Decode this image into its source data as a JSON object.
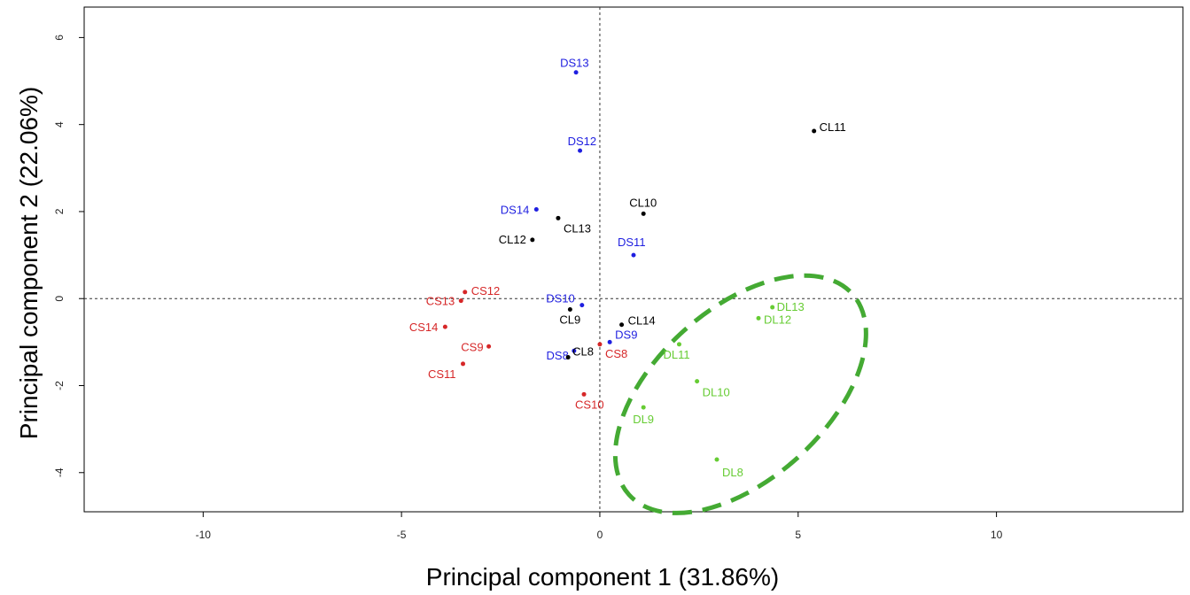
{
  "chart_data": {
    "type": "scatter",
    "title": "",
    "xlabel": "Principal component 1 (31.86%)",
    "ylabel": "Principal component 2 (22.06%)",
    "xlim": [
      -13.0,
      14.7
    ],
    "ylim": [
      -4.9,
      6.7
    ],
    "x_ticks": [
      -10,
      -5,
      0,
      5,
      10
    ],
    "y_ticks": [
      -4,
      -2,
      0,
      2,
      4,
      6
    ],
    "reference_lines": {
      "x": 0,
      "y": 0,
      "style": "dashed"
    },
    "colors": {
      "C_S": "#d62728",
      "C_L": "#000000",
      "D_S": "#1f1fe0",
      "D_L": "#66cc33",
      "ellipse": "#44aa33"
    },
    "points": [
      {
        "label": "DS13",
        "x": -0.6,
        "y": 5.2,
        "group": "D_S"
      },
      {
        "label": "DS12",
        "x": -0.5,
        "y": 3.4,
        "group": "D_S"
      },
      {
        "label": "DS14",
        "x": -1.6,
        "y": 2.05,
        "group": "D_S"
      },
      {
        "label": "DS11",
        "x": 0.85,
        "y": 1.0,
        "group": "D_S"
      },
      {
        "label": "DS10",
        "x": -0.45,
        "y": -0.15,
        "group": "D_S"
      },
      {
        "label": "DS9",
        "x": 0.25,
        "y": -1.0,
        "group": "D_S"
      },
      {
        "label": "DS8",
        "x": -0.65,
        "y": -1.2,
        "group": "D_S"
      },
      {
        "label": "CL11",
        "x": 5.4,
        "y": 3.85,
        "group": "C_L"
      },
      {
        "label": "CL10",
        "x": 1.1,
        "y": 1.95,
        "group": "C_L"
      },
      {
        "label": "CL13",
        "x": -1.05,
        "y": 1.85,
        "group": "C_L"
      },
      {
        "label": "CL12",
        "x": -1.7,
        "y": 1.35,
        "group": "C_L"
      },
      {
        "label": "CL9",
        "x": -0.75,
        "y": -0.25,
        "group": "C_L"
      },
      {
        "label": "CL14",
        "x": 0.55,
        "y": -0.6,
        "group": "C_L"
      },
      {
        "label": "CL8",
        "x": -0.8,
        "y": -1.35,
        "group": "C_L"
      },
      {
        "label": "CS12",
        "x": -3.4,
        "y": 0.15,
        "group": "C_S"
      },
      {
        "label": "CS13",
        "x": -3.5,
        "y": -0.05,
        "group": "C_S"
      },
      {
        "label": "CS14",
        "x": -3.9,
        "y": -0.65,
        "group": "C_S"
      },
      {
        "label": "CS9",
        "x": -2.8,
        "y": -1.1,
        "group": "C_S"
      },
      {
        "label": "CS11",
        "x": -3.45,
        "y": -1.5,
        "group": "C_S"
      },
      {
        "label": "CS8",
        "x": 0.0,
        "y": -1.05,
        "group": "C_S"
      },
      {
        "label": "CS10",
        "x": -0.4,
        "y": -2.2,
        "group": "C_S"
      },
      {
        "label": "DL13",
        "x": 4.35,
        "y": -0.2,
        "group": "D_L"
      },
      {
        "label": "DL12",
        "x": 4.0,
        "y": -0.45,
        "group": "D_L"
      },
      {
        "label": "DL11",
        "x": 2.0,
        "y": -1.05,
        "group": "D_L"
      },
      {
        "label": "DL10",
        "x": 2.45,
        "y": -1.9,
        "group": "D_L"
      },
      {
        "label": "DL9",
        "x": 1.1,
        "y": -2.5,
        "group": "D_L"
      },
      {
        "label": "DL8",
        "x": 2.95,
        "y": -3.7,
        "group": "D_L"
      }
    ],
    "ellipse": {
      "cx": 3.55,
      "cy": -2.2,
      "rx": 2.15,
      "ry": 3.45,
      "rotation_deg": 48,
      "style": "dashed"
    },
    "grid": false,
    "legend": "none"
  }
}
